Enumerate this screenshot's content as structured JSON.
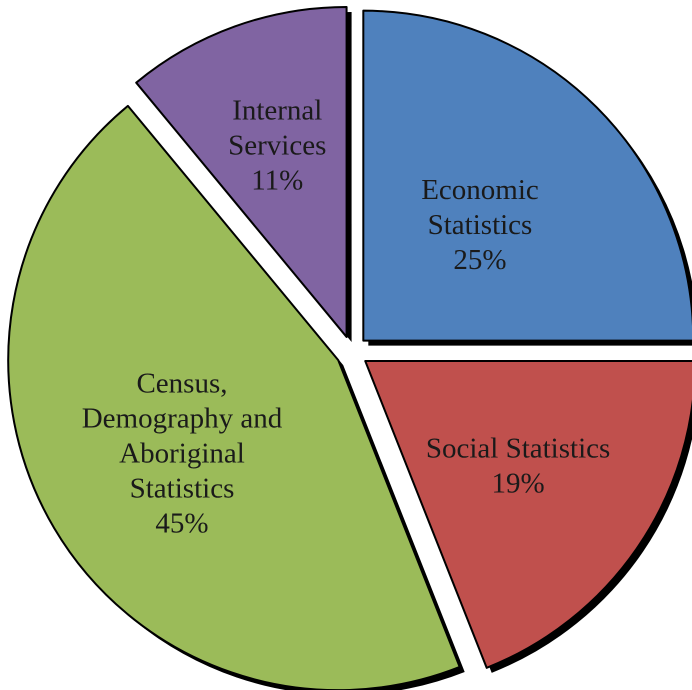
{
  "chart_data": {
    "type": "pie",
    "title": "",
    "slices": [
      {
        "label_lines": [
          "Economic",
          "Statistics",
          "25%"
        ],
        "category": "Economic Statistics",
        "value": 25,
        "color": "#4F81BD"
      },
      {
        "label_lines": [
          "Social Statistics",
          "19%"
        ],
        "category": "Social Statistics",
        "value": 19,
        "color": "#C0504D"
      },
      {
        "label_lines": [
          "Census,",
          "Demography and",
          "Aboriginal",
          "Statistics",
          "45%"
        ],
        "category": "Census, Demography and Aboriginal Statistics",
        "value": 45,
        "color": "#9BBB59"
      },
      {
        "label_lines": [
          "Internal",
          "Services",
          "11%"
        ],
        "category": "Internal Services",
        "value": 11,
        "color": "#8064A2"
      }
    ],
    "exploded": true,
    "start_angle": "12 o'clock",
    "direction": "clockwise",
    "slice_outline": "#000000"
  }
}
